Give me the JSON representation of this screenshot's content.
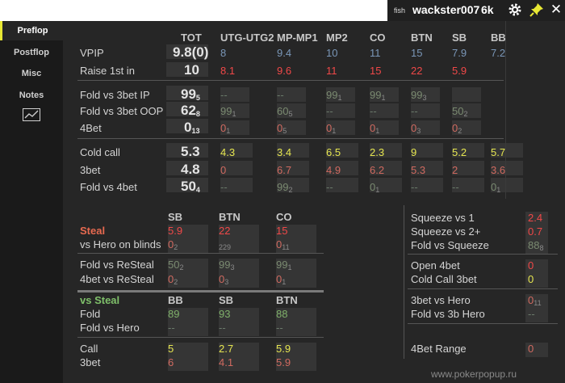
{
  "topbar": {
    "tag": "fish",
    "player": "wackster007",
    "hands": "6k",
    "close": "✕"
  },
  "sidebar": [
    "Preflop",
    "Postflop",
    "Misc",
    "Notes"
  ],
  "positions": [
    "TOT",
    "UTG-UTG2",
    "MP-MP1",
    "MP2",
    "CO",
    "BTN",
    "SB",
    "BB"
  ],
  "colors": {
    "blue": "#7a97b8",
    "red": "#f04848",
    "green": "#7fb06a",
    "yellow": "#e6e650",
    "muted": "#7a8a70",
    "salmon": "#d06a60",
    "dash": "#6a7a6a"
  },
  "stats1": {
    "vpip_label": "VPIP",
    "vpip_tot": "9.8(0)",
    "vpip": [
      "8",
      "9.4",
      "10",
      "11",
      "15",
      "7.9",
      "7.2"
    ],
    "r1_label": "Raise 1st in",
    "r1_tot": "10",
    "r1": [
      "8.1",
      "9.6",
      "11",
      "15",
      "22",
      "5.9"
    ]
  },
  "stats2": {
    "ip_label": "Fold vs 3bet IP",
    "ip_tot": "99",
    "ip_tot_n": "5",
    "ip": [
      [
        "--",
        ""
      ],
      [
        "--",
        ""
      ],
      [
        "99",
        "1"
      ],
      [
        "99",
        "1"
      ],
      [
        "99",
        "3"
      ]
    ],
    "oop_label": "Fold vs 3bet OOP",
    "oop_tot": "62",
    "oop_tot_n": "8",
    "oop": [
      [
        "99",
        "1"
      ],
      [
        "60",
        "5"
      ],
      [
        "--",
        ""
      ],
      [
        "--",
        ""
      ],
      [
        "--",
        ""
      ],
      [
        "50",
        "2"
      ]
    ],
    "fb_label": "4Bet",
    "fb_tot": "0",
    "fb_tot_n": "13",
    "fb": [
      [
        "0",
        "1"
      ],
      [
        "0",
        "5"
      ],
      [
        "0",
        "1"
      ],
      [
        "0",
        "1"
      ],
      [
        "0",
        "3"
      ],
      [
        "0",
        "2"
      ]
    ]
  },
  "stats3": {
    "cc_label": "Cold call",
    "cc_tot": "5.3",
    "cc": [
      "4.3",
      "3.4",
      "6.5",
      "2.3",
      "9",
      "5.2",
      "5.7"
    ],
    "tb_label": "3bet",
    "tb_tot": "4.8",
    "tb": [
      "0",
      "6.7",
      "4.9",
      "6.2",
      "5.3",
      "2",
      "3.6"
    ],
    "f4_label": "Fold vs 4bet",
    "f4_tot": "50",
    "f4_tot_n": "4",
    "f4": [
      [
        "--",
        ""
      ],
      [
        "99",
        "2"
      ],
      [
        "--",
        ""
      ],
      [
        "0",
        "1"
      ],
      [
        "--",
        ""
      ],
      [
        "--",
        ""
      ],
      [
        "0",
        "1"
      ]
    ]
  },
  "steal": {
    "cols": [
      "SB",
      "BTN",
      "CO"
    ],
    "steal_label": "Steal",
    "steal": [
      "5.9",
      "22",
      "15"
    ],
    "blinds_label": "vs Hero on blinds",
    "blinds": [
      [
        "0",
        "2"
      ],
      [
        "",
        "229"
      ],
      [
        "0",
        "11"
      ]
    ],
    "resteal_label": "Fold vs ReSteal",
    "resteal": [
      [
        "50",
        "2"
      ],
      [
        "99",
        "3"
      ],
      [
        "99",
        "1"
      ]
    ],
    "fourbet_label": "4bet vs ReSteal",
    "fourbet": [
      [
        "0",
        "2"
      ],
      [
        "0",
        "3"
      ],
      [
        "0",
        "1"
      ]
    ]
  },
  "vssteal": {
    "title": "vs Steal",
    "cols": [
      "BB",
      "SB",
      "BTN"
    ],
    "fold_label": "Fold",
    "fold": [
      "89",
      "93",
      "88"
    ],
    "hero_label": "Fold vs Hero",
    "hero": [
      "--",
      "--",
      "--"
    ],
    "call_label": "Call",
    "call": [
      "5",
      "2.7",
      "5.9"
    ],
    "tb_label": "3bet",
    "tb": [
      "6",
      "4.1",
      "5.9"
    ]
  },
  "right": {
    "sq1_label": "Squeeze vs 1",
    "sq1": "2.4",
    "sq2_label": "Squeeze vs 2+",
    "sq2": "0.7",
    "fsq_label": "Fold vs Squeeze",
    "fsq": "88",
    "fsq_n": "8",
    "o4_label": "Open 4bet",
    "o4": "0",
    "cc3_label": "Cold Call 3bet",
    "cc3": "0",
    "h3_label": "3bet vs Hero",
    "h3": "0",
    "h3_n": "11",
    "f3h_label": "Fold vs 3b Hero",
    "f3h": "--",
    "r4_label": "4Bet Range",
    "r4": "0"
  },
  "footer": "www.pokerpopup.ru"
}
